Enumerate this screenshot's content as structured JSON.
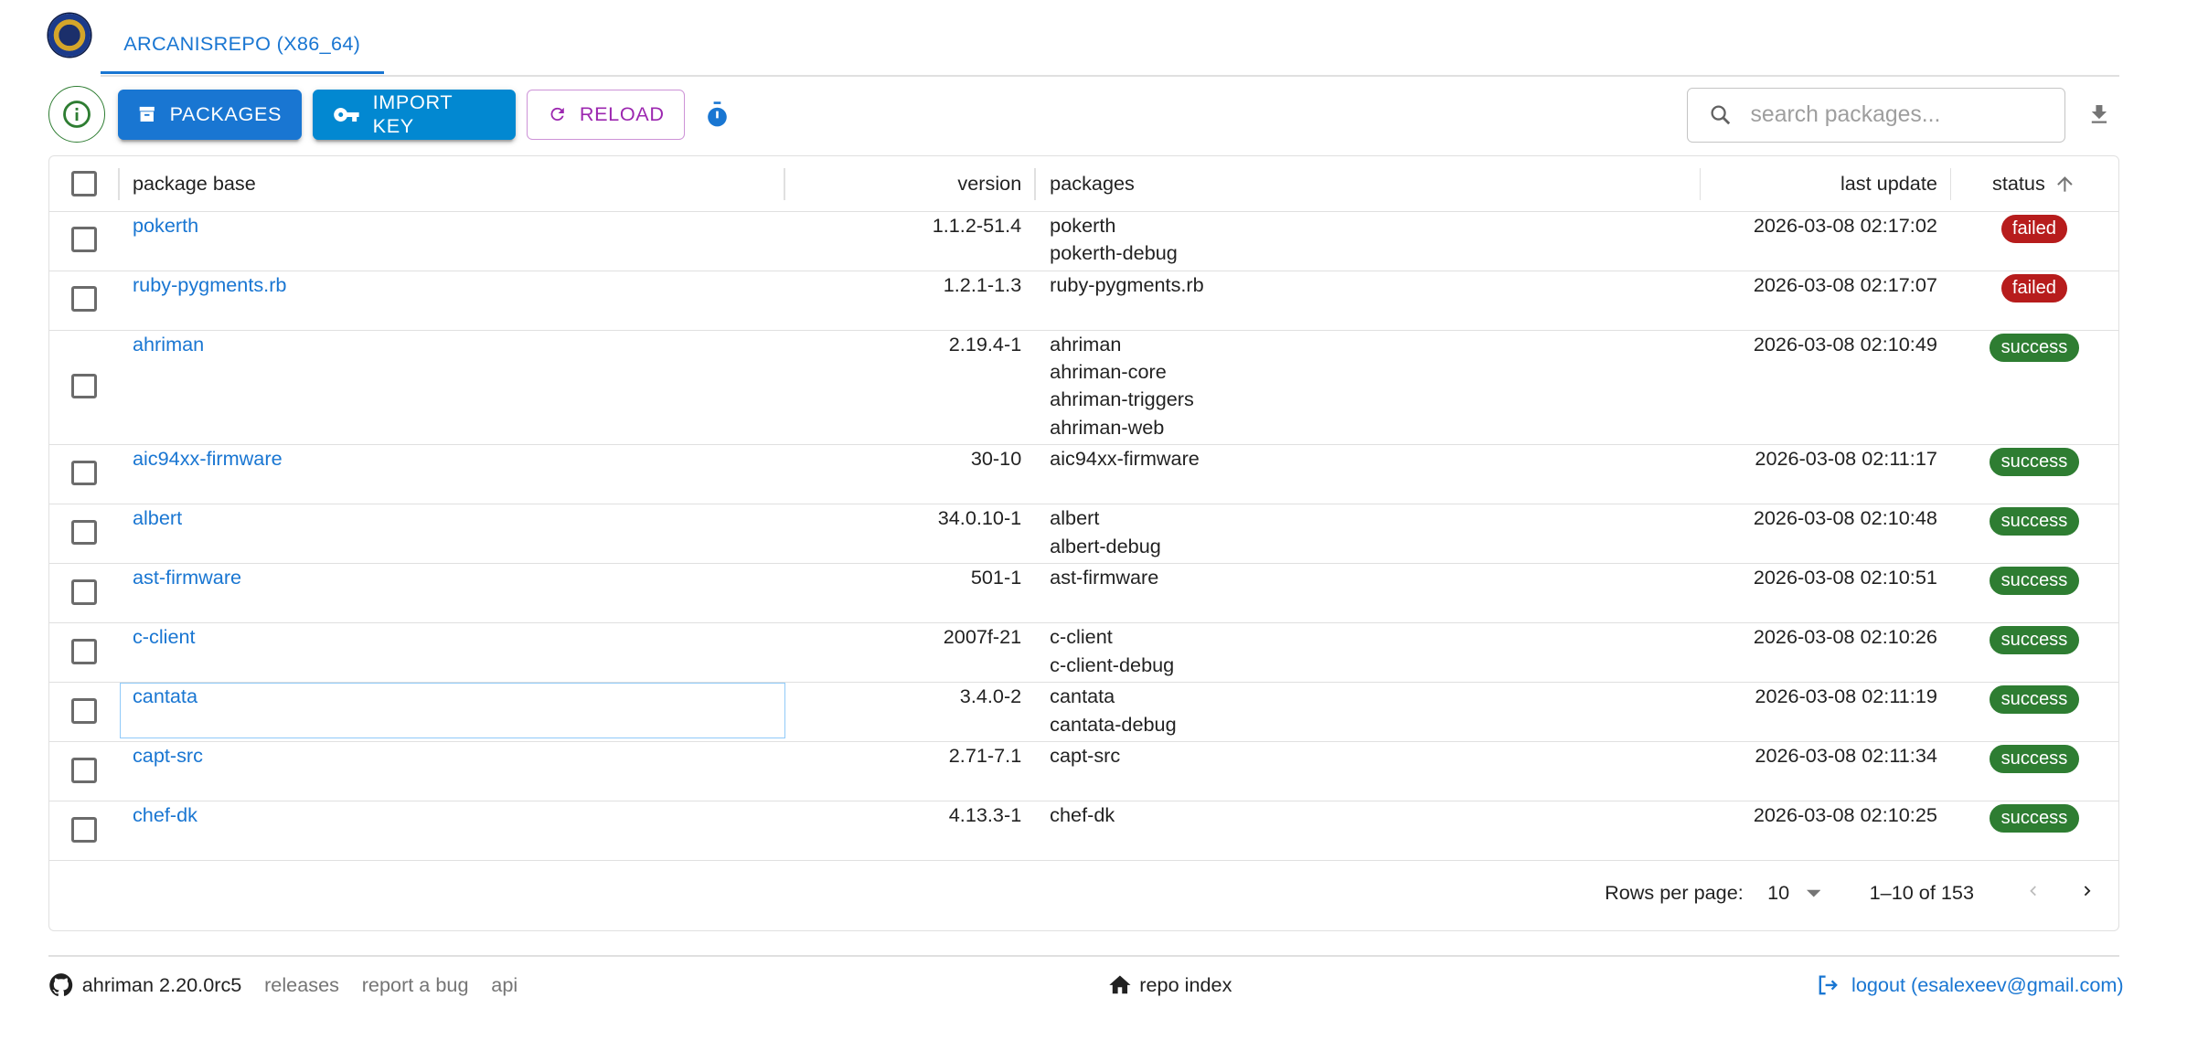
{
  "header": {
    "tab_label": "ARCANISREPO (X86_64)"
  },
  "toolbar": {
    "packages_label": "PACKAGES",
    "import_key_label": "IMPORT KEY",
    "reload_label": "RELOAD",
    "search_placeholder": "search packages...",
    "colors": {
      "packages": "#1976d2",
      "import_key": "#0288d1",
      "reload": "#9c27b0",
      "info": "#2e7d32"
    }
  },
  "table": {
    "columns": [
      "package base",
      "version",
      "packages",
      "last update",
      "status"
    ],
    "sort": {
      "column": "status",
      "direction": "ascending"
    },
    "rows": [
      {
        "base": "pokerth",
        "version": "1.1.2-51.4",
        "packages": [
          "pokerth",
          "pokerth-debug"
        ],
        "updated": "2026-03-08 02:17:02",
        "status": "failed"
      },
      {
        "base": "ruby-pygments.rb",
        "version": "1.2.1-1.3",
        "packages": [
          "ruby-pygments.rb"
        ],
        "updated": "2026-03-08 02:17:07",
        "status": "failed"
      },
      {
        "base": "ahriman",
        "version": "2.19.4-1",
        "packages": [
          "ahriman",
          "ahriman-core",
          "ahriman-triggers",
          "ahriman-web"
        ],
        "updated": "2026-03-08 02:10:49",
        "status": "success"
      },
      {
        "base": "aic94xx-firmware",
        "version": "30-10",
        "packages": [
          "aic94xx-firmware"
        ],
        "updated": "2026-03-08 02:11:17",
        "status": "success"
      },
      {
        "base": "albert",
        "version": "34.0.10-1",
        "packages": [
          "albert",
          "albert-debug"
        ],
        "updated": "2026-03-08 02:10:48",
        "status": "success"
      },
      {
        "base": "ast-firmware",
        "version": "501-1",
        "packages": [
          "ast-firmware"
        ],
        "updated": "2026-03-08 02:10:51",
        "status": "success"
      },
      {
        "base": "c-client",
        "version": "2007f-21",
        "packages": [
          "c-client",
          "c-client-debug"
        ],
        "updated": "2026-03-08 02:10:26",
        "status": "success"
      },
      {
        "base": "cantata",
        "version": "3.4.0-2",
        "packages": [
          "cantata",
          "cantata-debug"
        ],
        "updated": "2026-03-08 02:11:19",
        "status": "success"
      },
      {
        "base": "capt-src",
        "version": "2.71-7.1",
        "packages": [
          "capt-src"
        ],
        "updated": "2026-03-08 02:11:34",
        "status": "success"
      },
      {
        "base": "chef-dk",
        "version": "4.13.3-1",
        "packages": [
          "chef-dk"
        ],
        "updated": "2026-03-08 02:10:25",
        "status": "success"
      }
    ],
    "status_colors": {
      "failed": "#b71c1c",
      "success": "#2e7d32"
    }
  },
  "pagination": {
    "rows_per_page_label": "Rows per page:",
    "rows_per_page": "10",
    "range": "1–10 of 153"
  },
  "footer": {
    "version": "ahriman 2.20.0rc5",
    "releases": "releases",
    "report_bug": "report a bug",
    "api": "api",
    "repo_index": "repo index",
    "logout": "logout (esalexeev@gmail.com)"
  }
}
